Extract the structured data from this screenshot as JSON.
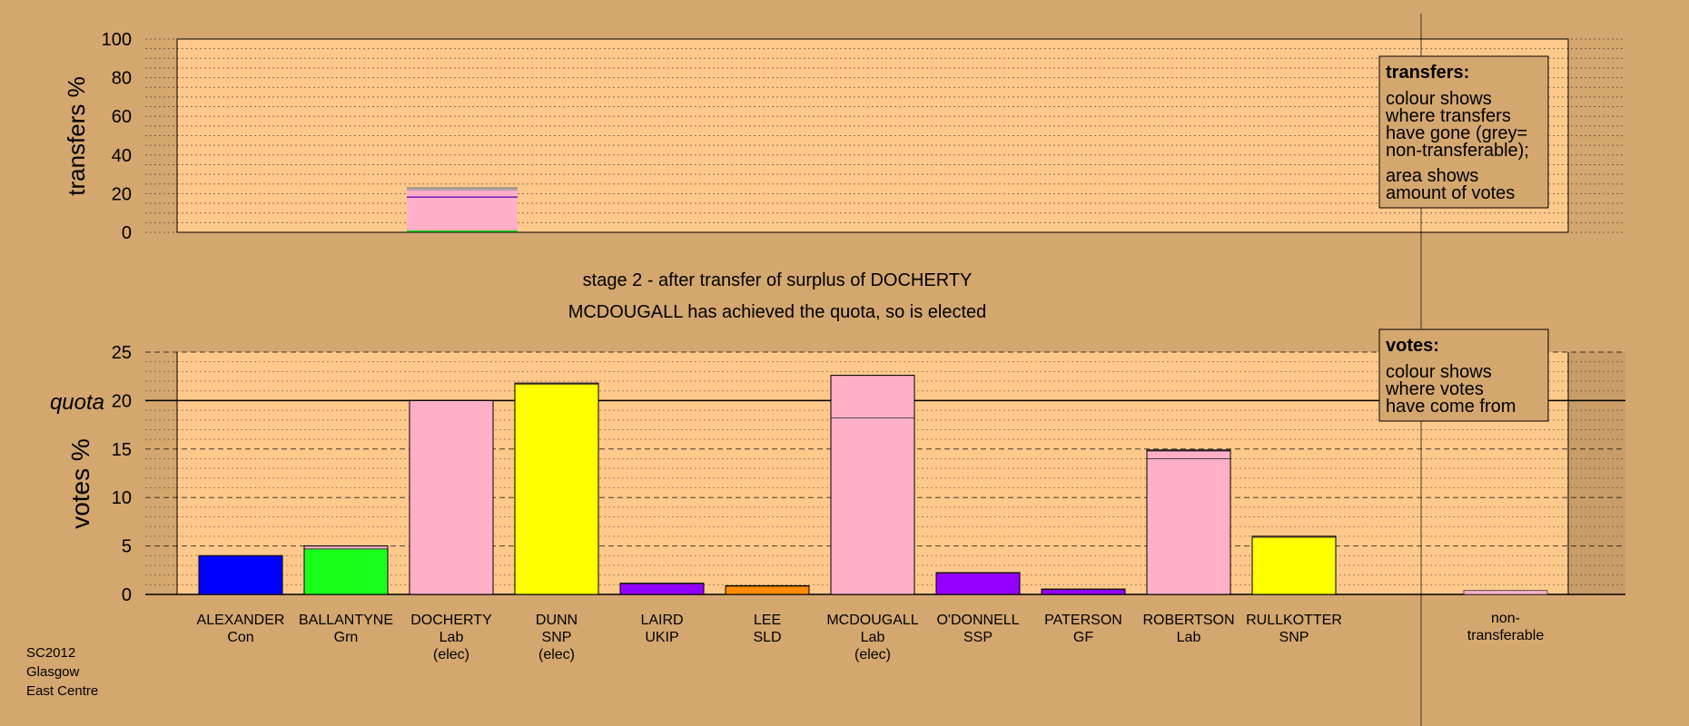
{
  "chart_data": [
    {
      "type": "bar",
      "panel": "transfers",
      "ylabel": "transfers %",
      "ylim": [
        0,
        100
      ],
      "yticks": [
        0,
        20,
        40,
        60,
        80,
        100
      ],
      "bars": [
        {
          "category_index": 2,
          "segments": [
            {
              "value": 1.0,
              "color": "#1aff1a"
            },
            {
              "value": 17.0,
              "color": "#ffb0c8"
            },
            {
              "value": 0.6,
              "color": "#9400ff"
            },
            {
              "value": 3.4,
              "color": "#ffb0c8"
            },
            {
              "value": 1.0,
              "color": "#b4b4b4"
            }
          ]
        }
      ],
      "legend": {
        "title": "transfers:",
        "lines": [
          "colour shows",
          "where transfers",
          "have gone (grey=",
          "non-transferable);",
          "area shows",
          "amount of votes"
        ]
      }
    },
    {
      "type": "bar",
      "panel": "votes",
      "ylabel": "votes %",
      "ylim": [
        0,
        25
      ],
      "yticks": [
        0,
        5,
        10,
        15,
        20,
        25
      ],
      "quota": {
        "value": 20,
        "label": "quota"
      },
      "categories": [
        {
          "name": "ALEXANDER",
          "party": "Con",
          "elected": ""
        },
        {
          "name": "BALLANTYNE",
          "party": "Grn",
          "elected": ""
        },
        {
          "name": "DOCHERTY",
          "party": "Lab",
          "elected": "(elec)"
        },
        {
          "name": "DUNN",
          "party": "SNP",
          "elected": "(elec)"
        },
        {
          "name": "LAIRD",
          "party": "UKIP",
          "elected": ""
        },
        {
          "name": "LEE",
          "party": "SLD",
          "elected": ""
        },
        {
          "name": "MCDOUGALL",
          "party": "Lab",
          "elected": "(elec)"
        },
        {
          "name": "O'DONNELL",
          "party": "SSP",
          "elected": ""
        },
        {
          "name": "PATERSON",
          "party": "GF",
          "elected": ""
        },
        {
          "name": "ROBERTSON",
          "party": "Lab",
          "elected": ""
        },
        {
          "name": "RULLKOTTER",
          "party": "SNP",
          "elected": ""
        }
      ],
      "bars": [
        {
          "segments": [
            {
              "value": 4.0,
              "color": "#0000ff"
            }
          ]
        },
        {
          "segments": [
            {
              "value": 4.7,
              "color": "#1aff1a"
            },
            {
              "value": 0.3,
              "color": "#ffb0c8"
            }
          ]
        },
        {
          "segments": [
            {
              "value": 20.0,
              "color": "#ffb0c8"
            }
          ]
        },
        {
          "segments": [
            {
              "value": 21.7,
              "color": "#ffff00"
            },
            {
              "value": 0.1,
              "color": "#ffb0c8"
            }
          ]
        },
        {
          "segments": [
            {
              "value": 1.1,
              "color": "#9400ff"
            },
            {
              "value": 0.05,
              "color": "#ffb0c8"
            }
          ]
        },
        {
          "segments": [
            {
              "value": 0.85,
              "color": "#ff8c00"
            },
            {
              "value": 0.05,
              "color": "#ffb0c8"
            }
          ]
        },
        {
          "segments": [
            {
              "value": 18.2,
              "color": "#ffb0c8"
            },
            {
              "value": 4.4,
              "color": "#ffb0c8"
            }
          ]
        },
        {
          "segments": [
            {
              "value": 2.2,
              "color": "#9400ff"
            },
            {
              "value": 0.05,
              "color": "#ffb0c8"
            }
          ]
        },
        {
          "segments": [
            {
              "value": 0.5,
              "color": "#9400ff"
            },
            {
              "value": 0.05,
              "color": "#ffb0c8"
            }
          ]
        },
        {
          "segments": [
            {
              "value": 14.0,
              "color": "#ffb0c8"
            },
            {
              "value": 0.8,
              "color": "#ffb0c8"
            },
            {
              "value": 0.1,
              "color": "#9400ff"
            }
          ]
        },
        {
          "segments": [
            {
              "value": 5.9,
              "color": "#ffff00"
            },
            {
              "value": 0.1,
              "color": "#ffb0c8"
            }
          ]
        }
      ],
      "nontransferable": {
        "label_lines": [
          "non-",
          "transferable"
        ],
        "value": 0.4,
        "color": "#ffb0c8"
      },
      "legend": {
        "title": "votes:",
        "lines": [
          "colour shows",
          "where votes",
          "have come from"
        ]
      }
    }
  ],
  "stage_title": "stage 2 - after transfer of surplus of DOCHERTY",
  "stage_subtitle": "MCDOUGALL has achieved the quota, so is elected",
  "footer": {
    "lines": [
      "SC2012",
      "Glasgow",
      "East Centre"
    ]
  },
  "colors": {
    "background": "#d4a76f",
    "panel": "#ffc98c",
    "nontransferable_area": "#c89d68"
  }
}
